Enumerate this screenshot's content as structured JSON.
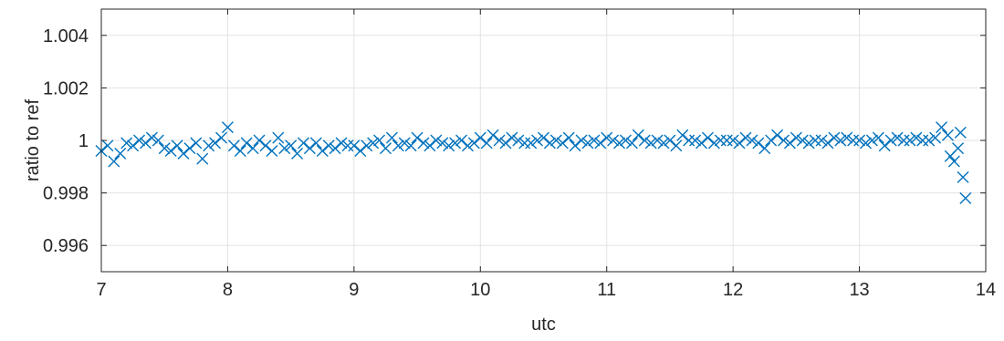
{
  "chart_data": {
    "type": "scatter",
    "title": "",
    "xlabel": "utc",
    "ylabel": "ratio to ref",
    "xlim": [
      7,
      14
    ],
    "ylim": [
      0.995,
      1.005
    ],
    "xticks": [
      7,
      8,
      9,
      10,
      11,
      12,
      13,
      14
    ],
    "xtick_labels": [
      "7",
      "8",
      "9",
      "10",
      "11",
      "12",
      "13",
      "14"
    ],
    "yticks": [
      0.996,
      0.998,
      1.0,
      1.002,
      1.004
    ],
    "ytick_labels": [
      "0.996",
      "0.998",
      "1",
      "1.002",
      "1.004"
    ],
    "grid": true,
    "legend": "none",
    "marker": "x",
    "colors": {
      "series": "#0072BD",
      "axes": "#262626",
      "grid": "#e3e3e3"
    },
    "series": [
      {
        "x": [
          7.0,
          7.05,
          7.1,
          7.15,
          7.2,
          7.25,
          7.3,
          7.35,
          7.4,
          7.45,
          7.5,
          7.55,
          7.6,
          7.65,
          7.7,
          7.75,
          7.8,
          7.85,
          7.9,
          7.95,
          8.0,
          8.05,
          8.1,
          8.15,
          8.2,
          8.25,
          8.3,
          8.35,
          8.4,
          8.45,
          8.5,
          8.55,
          8.6,
          8.65,
          8.7,
          8.75,
          8.8,
          8.85,
          8.9,
          8.95,
          9.0,
          9.05,
          9.1,
          9.15,
          9.2,
          9.25,
          9.3,
          9.35,
          9.4,
          9.45,
          9.5,
          9.55,
          9.6,
          9.65,
          9.7,
          9.75,
          9.8,
          9.85,
          9.9,
          9.95,
          10.0,
          10.05,
          10.1,
          10.15,
          10.2,
          10.25,
          10.3,
          10.35,
          10.4,
          10.45,
          10.5,
          10.55,
          10.6,
          10.65,
          10.7,
          10.75,
          10.8,
          10.85,
          10.9,
          10.95,
          11.0,
          11.05,
          11.1,
          11.15,
          11.2,
          11.25,
          11.3,
          11.35,
          11.4,
          11.45,
          11.5,
          11.55,
          11.6,
          11.65,
          11.7,
          11.75,
          11.8,
          11.85,
          11.9,
          11.95,
          12.0,
          12.05,
          12.1,
          12.15,
          12.2,
          12.25,
          12.3,
          12.35,
          12.4,
          12.45,
          12.5,
          12.55,
          12.6,
          12.65,
          12.7,
          12.75,
          12.8,
          12.85,
          12.9,
          12.95,
          13.0,
          13.05,
          13.1,
          13.15,
          13.2,
          13.25,
          13.3,
          13.35,
          13.4,
          13.45,
          13.5,
          13.55,
          13.6,
          13.65,
          13.7,
          13.72,
          13.75,
          13.78,
          13.8,
          13.82,
          13.84
        ],
        "y": [
          0.9996,
          0.9998,
          0.9992,
          0.9995,
          0.9999,
          0.9998,
          1.0,
          0.9999,
          1.0001,
          1.0,
          0.9997,
          0.9996,
          0.9998,
          0.9995,
          0.9997,
          0.9999,
          0.9993,
          0.9998,
          0.9999,
          1.0001,
          1.0005,
          0.9998,
          0.9996,
          0.9999,
          0.9997,
          1.0,
          0.9998,
          0.9996,
          1.0001,
          0.9997,
          0.9998,
          0.9995,
          0.9999,
          0.9997,
          0.9999,
          0.9996,
          0.9998,
          0.9997,
          0.9999,
          0.9998,
          0.9998,
          0.9996,
          0.9998,
          0.9999,
          1.0,
          0.9997,
          1.0001,
          0.9998,
          0.9999,
          0.9998,
          1.0001,
          0.9999,
          0.9998,
          1.0,
          0.9999,
          0.9998,
          0.9999,
          1.0,
          0.9998,
          0.9999,
          1.0001,
          0.9999,
          1.0002,
          1.0,
          0.9999,
          1.0001,
          1.0,
          0.9999,
          0.9999,
          1.0,
          1.0001,
          0.9999,
          1.0,
          0.9999,
          1.0001,
          0.9998,
          1.0,
          0.9999,
          1.0,
          0.9999,
          1.0001,
          1.0,
          0.9999,
          1.0,
          0.9999,
          1.0002,
          1.0,
          0.9999,
          1.0,
          0.9999,
          1.0,
          0.9998,
          1.0002,
          1.0,
          1.0,
          0.9999,
          1.0001,
          0.9999,
          1.0,
          1.0,
          1.0,
          0.9999,
          1.0001,
          1.0,
          0.9999,
          0.9997,
          1.0,
          1.0002,
          1.0,
          0.9999,
          1.0001,
          1.0,
          0.9999,
          1.0,
          1.0,
          0.9999,
          1.0001,
          1.0,
          1.0001,
          1.0,
          1.0,
          0.9999,
          1.0,
          1.0001,
          0.9998,
          1.0,
          1.0001,
          1.0,
          1.0,
          1.0001,
          1.0,
          1.0,
          1.0001,
          1.0005,
          1.0002,
          0.9994,
          0.9992,
          0.9997,
          1.0003,
          0.9986,
          0.9978
        ]
      }
    ]
  }
}
